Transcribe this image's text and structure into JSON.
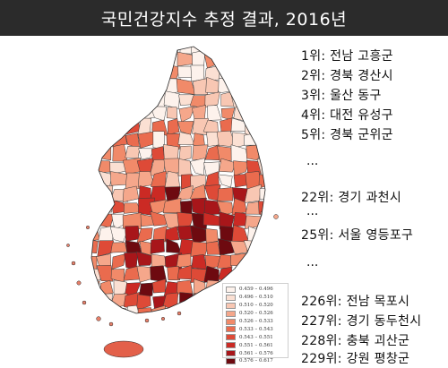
{
  "title": "국민건강지수 추정 결과, 2016년",
  "legend": [
    {
      "label": "0.459 – 0.496",
      "color": "#fdf2ec"
    },
    {
      "label": "0.496 – 0.510",
      "color": "#fbe0d3"
    },
    {
      "label": "0.510 – 0.520",
      "color": "#f8c7b3"
    },
    {
      "label": "0.520 – 0.526",
      "color": "#f5a78b"
    },
    {
      "label": "0.526 – 0.533",
      "color": "#f18a69"
    },
    {
      "label": "0.533 – 0.543",
      "color": "#ea6b4e"
    },
    {
      "label": "0.543 – 0.551",
      "color": "#de4a37"
    },
    {
      "label": "0.551 – 0.561",
      "color": "#cb2a24"
    },
    {
      "label": "0.561 – 0.576",
      "color": "#a8161a"
    },
    {
      "label": "0.576 – 0.617",
      "color": "#6e0a10"
    }
  ],
  "ranking": [
    {
      "text": "1위: 전남 고흥군"
    },
    {
      "text": "2위: 경북 경산시"
    },
    {
      "text": "3위: 울산 동구"
    },
    {
      "text": "4위: 대전 유성구"
    },
    {
      "text": "5위: 경북 군위군"
    },
    {
      "text": "22위: 경기 과천시"
    },
    {
      "text": "25위: 서울 영등포구"
    },
    {
      "text": "226위: 전남 목포시"
    },
    {
      "text": "227위: 경기 동두천시"
    },
    {
      "text": "228위: 충북 괴산군"
    },
    {
      "text": "229위: 강원 평창군"
    }
  ],
  "ellipsis": "..."
}
